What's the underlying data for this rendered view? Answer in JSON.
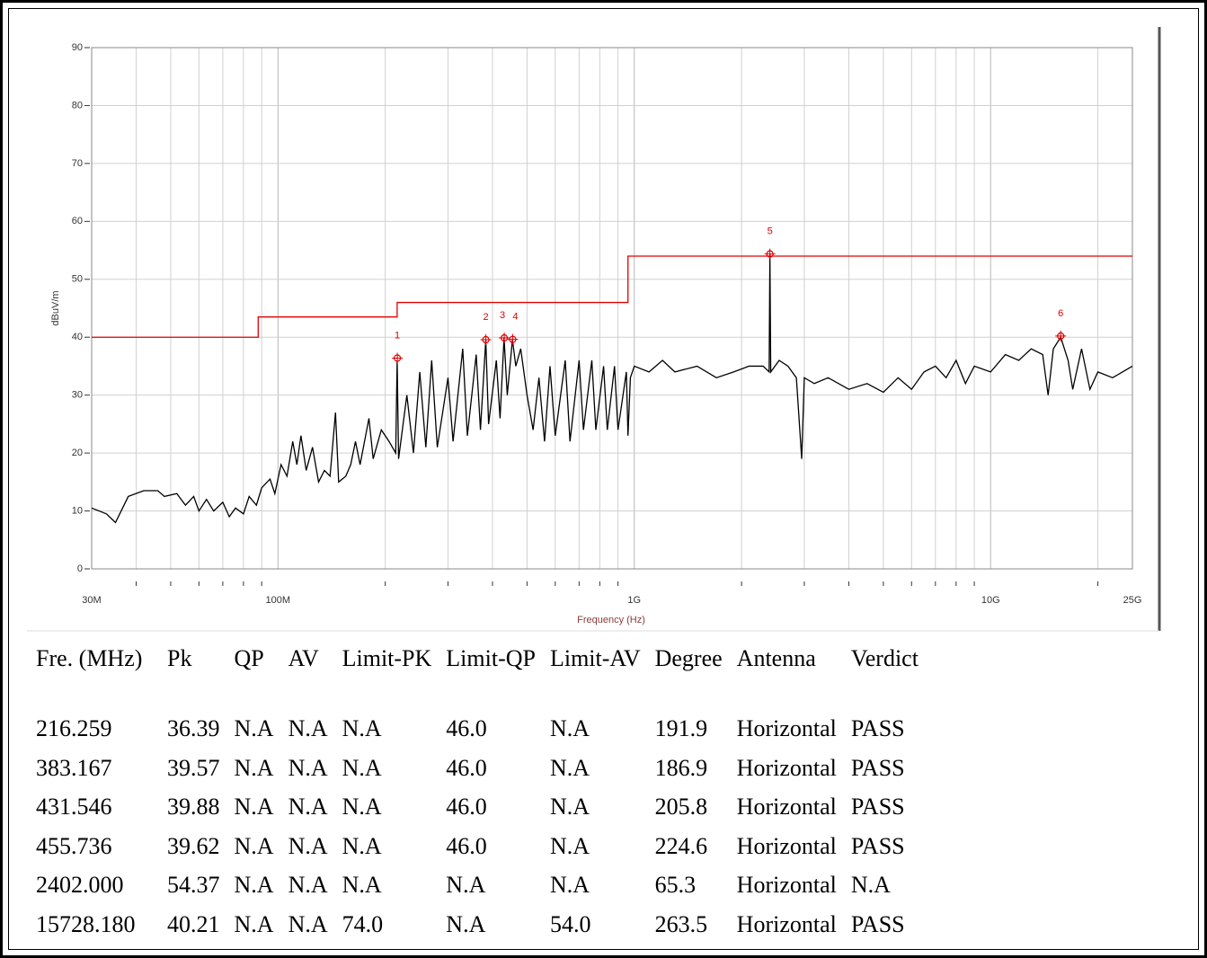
{
  "chart_data": {
    "type": "line",
    "xlabel": "Frequency (Hz)",
    "ylabel": "dBuV/m",
    "xscale": "log",
    "grid": true,
    "xlim": [
      30000000.0,
      25000000000.0
    ],
    "ylim": [
      0,
      90
    ],
    "xticks": [
      {
        "value": 30000000.0,
        "label": "30M"
      },
      {
        "value": 100000000.0,
        "label": "100M"
      },
      {
        "value": 1000000000.0,
        "label": "1G"
      },
      {
        "value": 10000000000.0,
        "label": "10G"
      },
      {
        "value": 25000000000.0,
        "label": "25G"
      }
    ],
    "xminorticks": [
      40000000.0,
      50000000.0,
      60000000.0,
      70000000.0,
      80000000.0,
      90000000.0,
      200000000.0,
      300000000.0,
      400000000.0,
      500000000.0,
      600000000.0,
      700000000.0,
      800000000.0,
      900000000.0,
      2000000000.0,
      3000000000.0,
      4000000000.0,
      5000000000.0,
      6000000000.0,
      7000000000.0,
      8000000000.0,
      9000000000.0,
      20000000000.0
    ],
    "yticks": [
      0,
      10,
      20,
      30,
      40,
      50,
      60,
      70,
      80,
      90
    ],
    "series": [
      {
        "color": "#000000",
        "x": [
          30000000.0,
          33000000.0,
          35000000.0,
          38000000.0,
          42000000.0,
          46000000.0,
          48000000.0,
          52000000.0,
          55000000.0,
          58000000.0,
          60000000.0,
          63000000.0,
          66000000.0,
          70000000.0,
          73000000.0,
          76000000.0,
          80000000.0,
          83000000.0,
          87000000.0,
          90000000.0,
          95000000.0,
          98000000.0,
          102000000.0,
          106000000.0,
          110000000.0,
          113000000.0,
          116000000.0,
          120000000.0,
          125000000.0,
          130000000.0,
          135000000.0,
          140000000.0,
          145000000.0,
          148000000.0,
          155000000.0,
          160000000.0,
          165000000.0,
          170000000.0,
          180000000.0,
          185000000.0,
          195000000.0,
          205000000.0,
          214000000.0,
          216000000.0,
          218000000.0,
          230000000.0,
          240000000.0,
          250000000.0,
          260000000.0,
          270000000.0,
          280000000.0,
          300000000.0,
          310000000.0,
          330000000.0,
          340000000.0,
          360000000.0,
          370000000.0,
          383000000.0,
          390000000.0,
          410000000.0,
          420000000.0,
          431000000.0,
          440000000.0,
          455000000.0,
          465000000.0,
          480000000.0,
          500000000.0,
          520000000.0,
          540000000.0,
          560000000.0,
          580000000.0,
          600000000.0,
          640000000.0,
          660000000.0,
          700000000.0,
          720000000.0,
          760000000.0,
          780000000.0,
          820000000.0,
          840000000.0,
          880000000.0,
          900000000.0,
          950000000.0,
          960000000.0,
          975000000.0,
          1000000000.0,
          1100000000.0,
          1200000000.0,
          1300000000.0,
          1500000000.0,
          1700000000.0,
          1900000000.0,
          2100000000.0,
          2300000000.0,
          2390000000.0,
          2402000000.0,
          2415000000.0,
          2550000000.0,
          2700000000.0,
          2850000000.0,
          2950000000.0,
          3000000000.0,
          3200000000.0,
          3500000000.0,
          4000000000.0,
          4500000000.0,
          5000000000.0,
          5500000000.0,
          6000000000.0,
          6500000000.0,
          7000000000.0,
          7500000000.0,
          8000000000.0,
          8500000000.0,
          9000000000.0,
          10000000000.0,
          11000000000.0,
          12000000000.0,
          13000000000.0,
          14000000000.0,
          14500000000.0,
          15000000000.0,
          15728000000.0,
          16500000000.0,
          17000000000.0,
          18000000000.0,
          19000000000.0,
          20000000000.0,
          22000000000.0,
          25000000000.0
        ],
        "values": [
          10.5,
          9.5,
          8,
          12.5,
          13.5,
          13.5,
          12.5,
          13,
          11,
          12.5,
          10,
          12,
          10,
          11.5,
          9,
          10.5,
          9.5,
          12.5,
          11,
          14,
          15.5,
          13,
          18,
          16,
          22,
          18,
          23,
          17,
          21,
          15,
          17,
          16,
          27,
          15,
          16,
          18,
          22,
          18,
          26,
          19,
          24,
          22,
          20,
          36,
          19,
          30,
          20,
          34,
          21,
          36,
          21,
          33,
          22,
          38,
          23,
          37,
          24,
          39.5,
          25,
          36,
          26,
          39.9,
          30,
          39.6,
          35,
          38,
          30,
          24,
          33,
          22,
          35,
          23,
          36,
          22,
          36,
          24,
          36,
          24,
          35,
          24,
          35,
          24,
          34,
          23,
          33,
          35,
          34,
          36,
          34,
          35,
          33,
          34,
          35,
          35,
          34,
          54.4,
          34,
          36,
          35,
          33,
          19,
          33,
          32,
          33,
          31,
          32,
          30.5,
          33,
          31,
          34,
          35,
          33,
          36,
          32,
          35,
          34,
          37,
          36,
          38,
          37,
          30,
          38,
          40,
          36,
          31,
          38,
          31,
          34,
          33,
          35
        ]
      },
      {
        "color": "#e00000",
        "x": [
          30000000.0,
          88000000.0,
          88000000.0,
          216000000.0,
          216000000.0,
          960000000.0,
          960000000.0,
          25000000000.0
        ],
        "values": [
          40,
          40,
          43.5,
          43.5,
          46,
          46,
          54,
          54
        ]
      }
    ],
    "markers": {
      "color": "#e00000",
      "x": [
        216259000.0,
        383167000.0,
        431546000.0,
        455736000.0,
        2402000000.0,
        15728180000.0
      ],
      "values": [
        36.39,
        39.57,
        39.88,
        39.62,
        54.37,
        40.21
      ],
      "labels": [
        "1",
        "2",
        "3",
        "4",
        "5",
        "6"
      ]
    }
  },
  "table": {
    "header": [
      "Fre. (MHz)",
      "Pk",
      "QP",
      "AV",
      "Limit-PK",
      "Limit-QP",
      "Limit-AV",
      "Degree",
      "Antenna",
      "Verdict"
    ],
    "rows": [
      [
        "216.259",
        "36.39",
        "N.A",
        "N.A",
        "N.A",
        "46.0",
        "N.A",
        "191.9",
        "Horizontal",
        "PASS"
      ],
      [
        "383.167",
        "39.57",
        "N.A",
        "N.A",
        "N.A",
        "46.0",
        "N.A",
        "186.9",
        "Horizontal",
        "PASS"
      ],
      [
        "431.546",
        "39.88",
        "N.A",
        "N.A",
        "N.A",
        "46.0",
        "N.A",
        "205.8",
        "Horizontal",
        "PASS"
      ],
      [
        "455.736",
        "39.62",
        "N.A",
        "N.A",
        "N.A",
        "46.0",
        "N.A",
        "224.6",
        "Horizontal",
        "PASS"
      ],
      [
        "2402.000",
        "54.37",
        "N.A",
        "N.A",
        "N.A",
        "N.A",
        "N.A",
        "65.3",
        "Horizontal",
        "N.A"
      ],
      [
        "15728.180",
        "40.21",
        "N.A",
        "N.A",
        "74.0",
        "N.A",
        "54.0",
        "263.5",
        "Horizontal",
        "PASS"
      ]
    ]
  }
}
